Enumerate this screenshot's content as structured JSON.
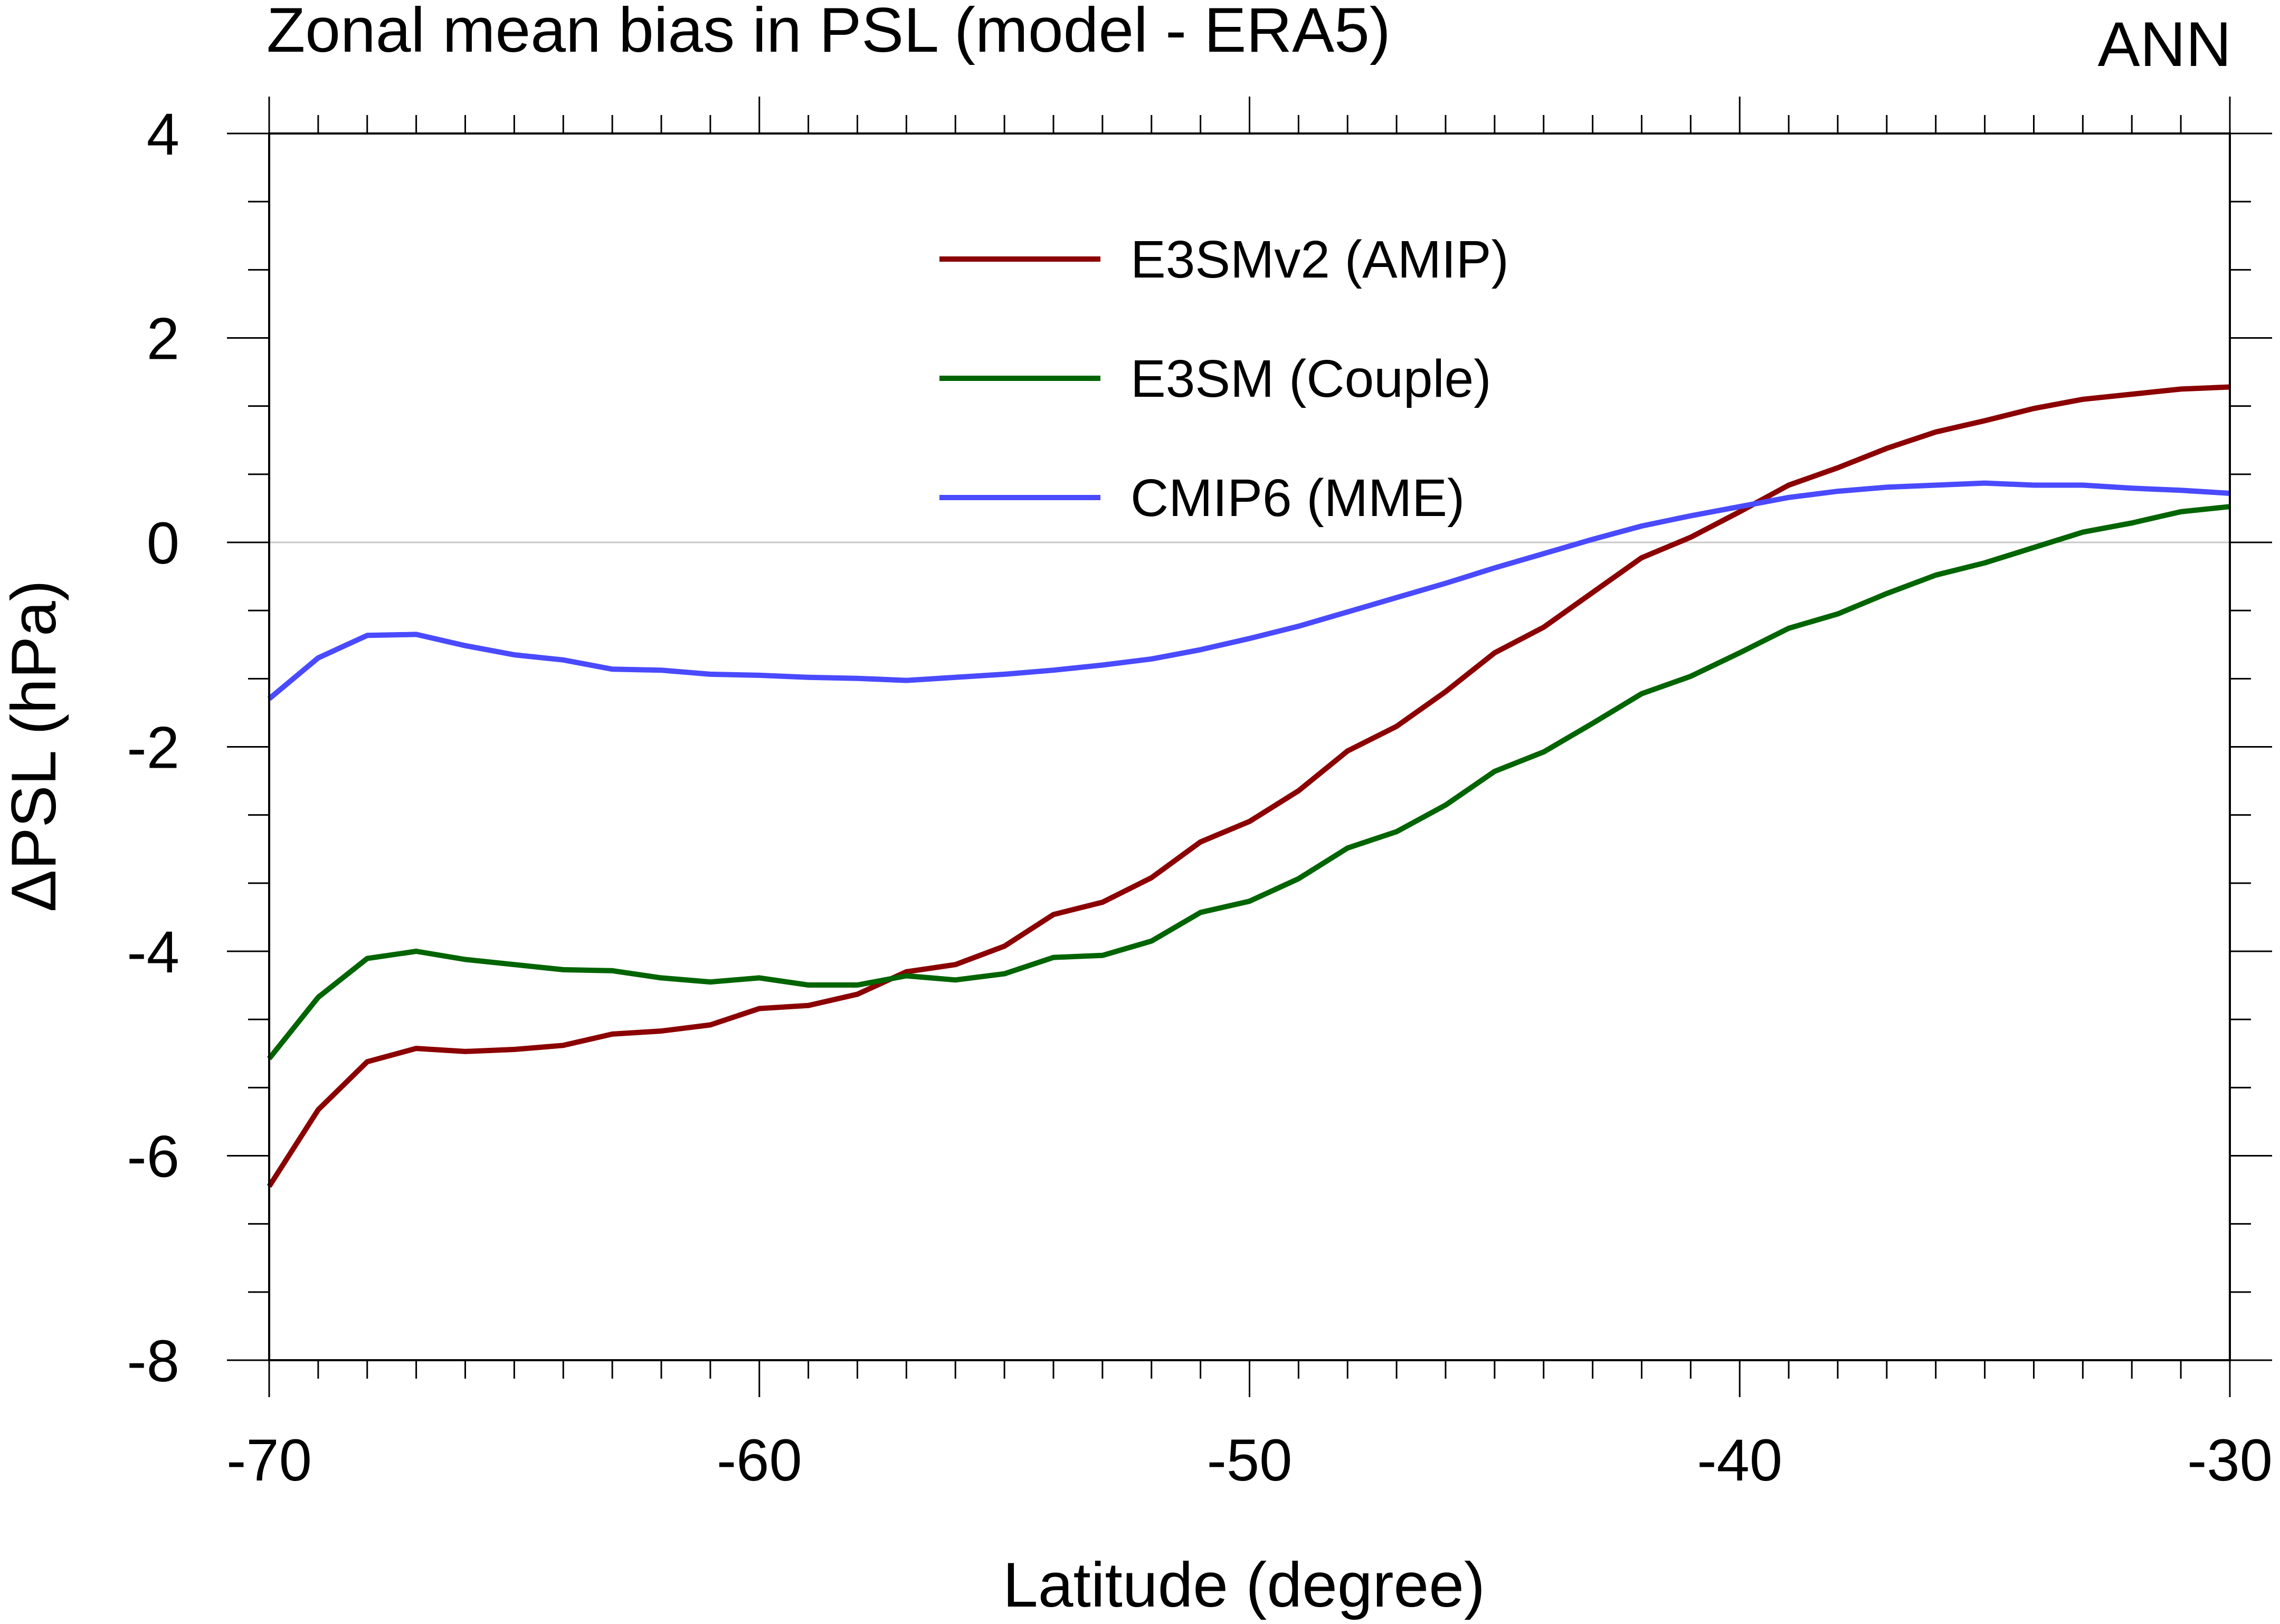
{
  "chart_data": {
    "type": "line",
    "title": "Zonal mean bias in PSL (model - ERA5)",
    "season": "ANN",
    "xlabel": "Latitude (degree)",
    "ylabel": "ΔPSL (hPa)",
    "xlim": [
      -70,
      -30
    ],
    "ylim": [
      -8,
      4
    ],
    "xticks": [
      -70,
      -60,
      -50,
      -40,
      -30
    ],
    "xtick_labels": [
      "-70",
      "-60",
      "-50",
      "-40",
      "-30"
    ],
    "xminor_step": 1,
    "yticks": [
      -8,
      -6,
      -4,
      -2,
      0,
      2,
      4
    ],
    "ytick_labels": [
      "-8",
      "-6",
      "-4",
      "-2",
      "0",
      "2",
      "4"
    ],
    "yminor_step": 0.66667,
    "zero_line": true,
    "legend_position": "top-center",
    "x": [
      -70,
      -69,
      -68,
      -67,
      -66,
      -65,
      -64,
      -63,
      -62,
      -61,
      -60,
      -59,
      -58,
      -57,
      -56,
      -55,
      -54,
      -53,
      -52,
      -51,
      -50,
      -49,
      -48,
      -47,
      -46,
      -45,
      -44,
      -43,
      -42,
      -41,
      -40,
      -39,
      -38,
      -37,
      -36,
      -35,
      -34,
      -33,
      -32,
      -31,
      -30
    ],
    "series": [
      {
        "name": "E3SMv2 (AMIP)",
        "color": "#8b0000",
        "values": [
          -6.3,
          -5.55,
          -5.08,
          -4.95,
          -4.98,
          -4.96,
          -4.92,
          -4.81,
          -4.78,
          -4.72,
          -4.56,
          -4.53,
          -4.42,
          -4.2,
          -4.13,
          -3.95,
          -3.64,
          -3.52,
          -3.28,
          -2.93,
          -2.73,
          -2.43,
          -2.04,
          -1.8,
          -1.46,
          -1.08,
          -0.83,
          -0.49,
          -0.15,
          0.05,
          0.3,
          0.56,
          0.73,
          0.92,
          1.08,
          1.19,
          1.31,
          1.4,
          1.45,
          1.5,
          1.52
        ]
      },
      {
        "name": "E3SM (Couple)",
        "color": "#006400",
        "values": [
          -5.05,
          -4.45,
          -4.07,
          -4.0,
          -4.08,
          -4.13,
          -4.18,
          -4.19,
          -4.26,
          -4.3,
          -4.26,
          -4.33,
          -4.33,
          -4.24,
          -4.28,
          -4.22,
          -4.06,
          -4.04,
          -3.9,
          -3.62,
          -3.51,
          -3.29,
          -2.99,
          -2.83,
          -2.57,
          -2.24,
          -2.05,
          -1.77,
          -1.48,
          -1.31,
          -1.08,
          -0.84,
          -0.7,
          -0.5,
          -0.32,
          -0.2,
          -0.05,
          0.1,
          0.19,
          0.3,
          0.35
        ]
      },
      {
        "name": "CMIP6 (MME)",
        "color": "#4a4aff",
        "values": [
          -1.53,
          -1.13,
          -0.91,
          -0.9,
          -1.01,
          -1.1,
          -1.15,
          -1.24,
          -1.25,
          -1.29,
          -1.3,
          -1.32,
          -1.33,
          -1.35,
          -1.32,
          -1.29,
          -1.25,
          -1.2,
          -1.14,
          -1.05,
          -0.94,
          -0.82,
          -0.68,
          -0.54,
          -0.4,
          -0.25,
          -0.11,
          0.03,
          0.16,
          0.26,
          0.35,
          0.44,
          0.5,
          0.54,
          0.56,
          0.58,
          0.56,
          0.56,
          0.53,
          0.51,
          0.48
        ]
      }
    ]
  }
}
